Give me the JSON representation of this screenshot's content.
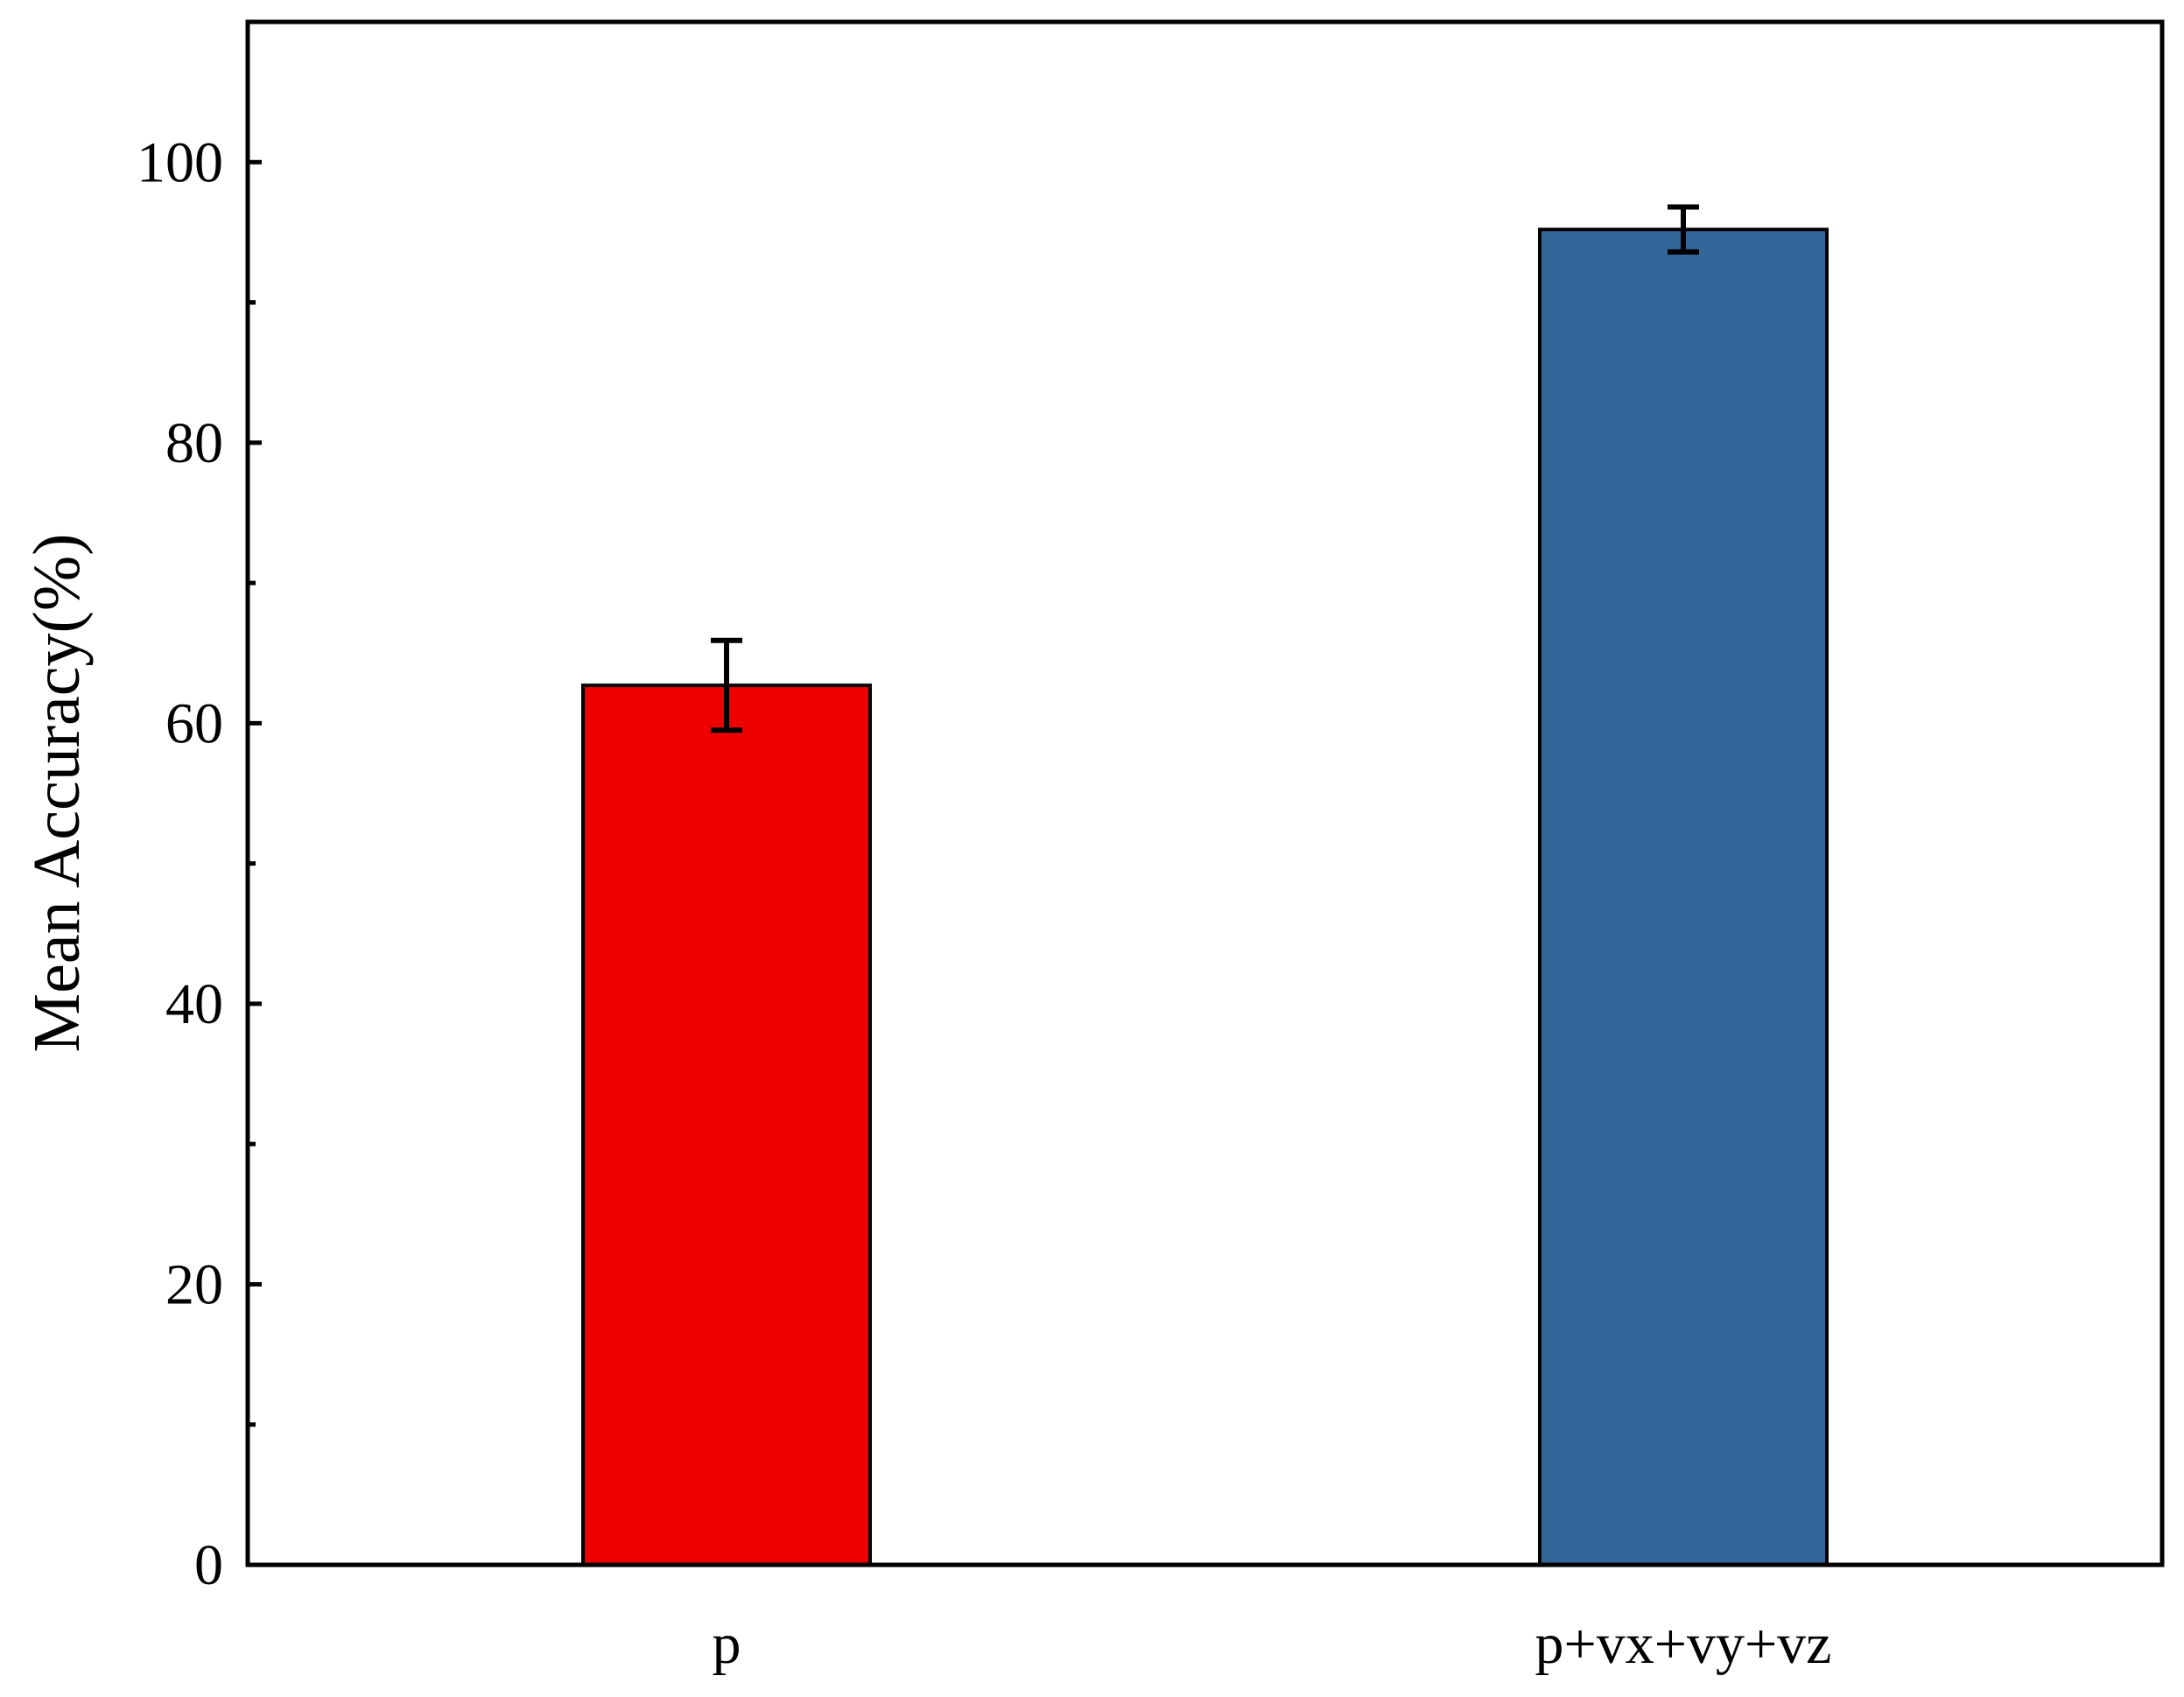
{
  "chart_data": {
    "type": "bar",
    "title": "",
    "xlabel": "",
    "ylabel": "Mean Accuracy(%)",
    "categories": [
      "p",
      "p+vx+vy+vz"
    ],
    "values": [
      62.7,
      95.2
    ],
    "errors": [
      3.2,
      1.6
    ],
    "colors": [
      "#ee0000",
      "#336699"
    ],
    "ylim": [
      0,
      110
    ],
    "yticks": [
      0,
      20,
      40,
      60,
      80,
      100
    ],
    "y_minor_step": 10,
    "grid": false,
    "legend": "none"
  }
}
